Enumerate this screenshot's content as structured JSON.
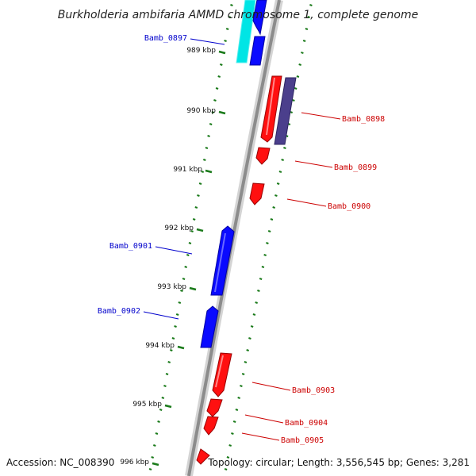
{
  "title": "Burkholderia ambifaria AMMD chromosome 1, complete genome",
  "footer": {
    "accession": "Accession: NC_008390",
    "summary": "Topology: circular; Length: 3,556,545 bp; Genes: 3,281"
  },
  "colors": {
    "forward_gene": "#0a0aff",
    "reverse_gene": "#ff1010",
    "cds_other": "#4b3f8c",
    "cyan_feature": "#00e5e5",
    "backbone": "#8c8c8c",
    "tick": "#1a7a1a",
    "forward_label": "#0000cc",
    "reverse_label": "#cc0000"
  },
  "ticks": [
    {
      "label": "989 kbp"
    },
    {
      "label": "990 kbp"
    },
    {
      "label": "991 kbp"
    },
    {
      "label": "992 kbp"
    },
    {
      "label": "993 kbp"
    },
    {
      "label": "994 kbp"
    },
    {
      "label": "995 kbp"
    },
    {
      "label": "996 kbp"
    }
  ],
  "genes": [
    {
      "name": "Bamb_0897",
      "strand": "forward"
    },
    {
      "name": "Bamb_0898",
      "strand": "reverse"
    },
    {
      "name": "Bamb_0899",
      "strand": "reverse"
    },
    {
      "name": "Bamb_0900",
      "strand": "reverse"
    },
    {
      "name": "Bamb_0901",
      "strand": "forward"
    },
    {
      "name": "Bamb_0902",
      "strand": "forward"
    },
    {
      "name": "Bamb_0903",
      "strand": "reverse"
    },
    {
      "name": "Bamb_0904",
      "strand": "reverse"
    },
    {
      "name": "Bamb_0905",
      "strand": "reverse"
    }
  ]
}
